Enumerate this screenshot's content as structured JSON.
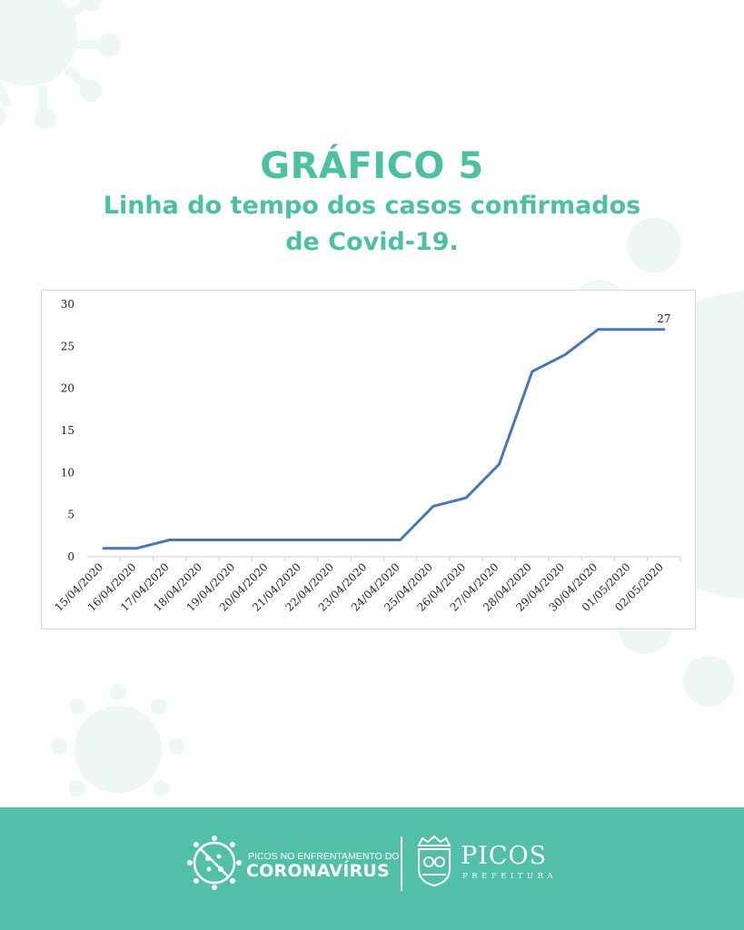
{
  "header": {
    "title": "GRÁFICO 5",
    "subtitle_line1": "Linha do tempo dos casos confirmados",
    "subtitle_line2": "de Covid-19."
  },
  "colors": {
    "accent": "#4dbfa3",
    "footer_bg": "#52bfa9",
    "line": "#4a76b8",
    "decoration": "#eef7f4"
  },
  "chart_data": {
    "type": "line",
    "title": "",
    "xlabel": "",
    "ylabel": "",
    "categories": [
      "15/04/2020",
      "16/04/2020",
      "17/04/2020",
      "18/04/2020",
      "19/04/2020",
      "20/04/2020",
      "21/04/2020",
      "22/04/2020",
      "23/04/2020",
      "24/04/2020",
      "25/04/2020",
      "26/04/2020",
      "27/04/2020",
      "28/04/2020",
      "29/04/2020",
      "30/04/2020",
      "01/05/2020",
      "02/05/2020"
    ],
    "series": [
      {
        "values": [
          1,
          1,
          2,
          2,
          2,
          2,
          2,
          2,
          2,
          2,
          6,
          7,
          11,
          22,
          24,
          27,
          27,
          27
        ]
      }
    ],
    "ylim": [
      0,
      30
    ],
    "yticks": [
      0,
      5,
      10,
      15,
      20,
      25,
      30
    ],
    "data_labels": [
      {
        "index": 17,
        "text": "27"
      }
    ],
    "grid": false,
    "legend": "none"
  },
  "footer": {
    "campaign_top": "PICOS NO ENFRENTAMENTO DO",
    "campaign_main": "CORONAVÍRUS",
    "city_name": "PICOS",
    "city_sub": "PREFEITURA",
    "campaign_icon": "crossed-virus-icon",
    "city_icon": "city-crest-icon"
  }
}
